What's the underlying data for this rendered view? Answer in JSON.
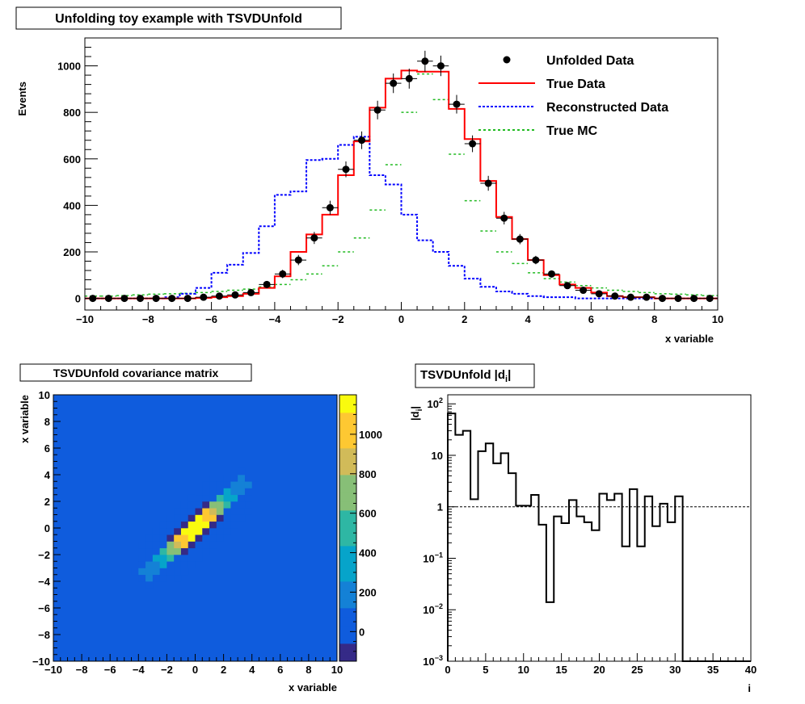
{
  "chart_data": [
    {
      "type": "histogram",
      "title": "Unfolding toy example with TSVDUnfold",
      "xlabel": "x variable",
      "ylabel": "Events",
      "xlim": [
        -10,
        10
      ],
      "ylim": [
        -50,
        1120
      ],
      "x_ticks": [
        -10,
        -8,
        -6,
        -4,
        -2,
        0,
        2,
        4,
        6,
        8,
        10
      ],
      "y_ticks": [
        0,
        200,
        400,
        600,
        800,
        1000
      ],
      "bin_edges_start": -10,
      "bin_width": 0.5,
      "legend_position": "top-right",
      "series": [
        {
          "name": "Unfolded Data",
          "style": "markers",
          "color": "#000000",
          "values": [
            0,
            0,
            0,
            0,
            0,
            0,
            0,
            5,
            10,
            15,
            25,
            60,
            105,
            165,
            260,
            390,
            555,
            680,
            810,
            925,
            945,
            1020,
            1000,
            835,
            665,
            495,
            345,
            255,
            165,
            105,
            55,
            35,
            20,
            10,
            5,
            5,
            0,
            0,
            0,
            0
          ],
          "errors": [
            5,
            5,
            5,
            5,
            5,
            5,
            5,
            6,
            8,
            10,
            12,
            15,
            18,
            22,
            26,
            30,
            34,
            38,
            40,
            42,
            43,
            45,
            44,
            40,
            36,
            32,
            27,
            22,
            18,
            15,
            12,
            10,
            8,
            6,
            5,
            5,
            5,
            5,
            5,
            5
          ]
        },
        {
          "name": "True Data",
          "style": "solid",
          "color": "#ff0000",
          "values": [
            0,
            0,
            0,
            0,
            0,
            0,
            0,
            2,
            5,
            10,
            20,
            45,
            95,
            200,
            275,
            360,
            530,
            675,
            820,
            945,
            980,
            975,
            975,
            815,
            685,
            505,
            350,
            255,
            165,
            100,
            60,
            45,
            25,
            10,
            5,
            5,
            0,
            0,
            0,
            0
          ]
        },
        {
          "name": "Reconstructed Data",
          "style": "dotted",
          "color": "#0000ff",
          "values": [
            0,
            0,
            0,
            0,
            0,
            5,
            20,
            45,
            110,
            145,
            195,
            310,
            445,
            460,
            595,
            600,
            660,
            695,
            530,
            490,
            360,
            250,
            200,
            140,
            85,
            50,
            30,
            20,
            10,
            5,
            5,
            0,
            0,
            0,
            0,
            0,
            0,
            0,
            0,
            0
          ]
        },
        {
          "name": "True MC",
          "style": "dashed",
          "color": "#22bb22",
          "values": [
            10,
            10,
            12,
            15,
            18,
            20,
            22,
            25,
            30,
            35,
            40,
            50,
            60,
            80,
            105,
            140,
            200,
            260,
            380,
            575,
            800,
            965,
            855,
            620,
            420,
            290,
            200,
            150,
            110,
            85,
            70,
            55,
            45,
            35,
            30,
            25,
            20,
            18,
            15,
            12
          ]
        }
      ]
    },
    {
      "type": "heatmap",
      "title": "TSVDUnfold covariance matrix",
      "xlabel": "x variable",
      "ylabel": "x variable",
      "xlim": [
        -10,
        10
      ],
      "ylim": [
        -10,
        10
      ],
      "x_ticks": [
        -10,
        -8,
        -6,
        -4,
        -2,
        0,
        2,
        4,
        6,
        8,
        10
      ],
      "y_ticks": [
        -10,
        -8,
        -6,
        -4,
        -2,
        0,
        2,
        4,
        6,
        8,
        10
      ],
      "zlim": [
        -150,
        1200
      ],
      "z_ticks": [
        0,
        200,
        400,
        600,
        800,
        1000
      ],
      "colormap": [
        "#352a87",
        "#0f5cdd",
        "#1481d6",
        "#06a4ca",
        "#2eb7a4",
        "#87bf77",
        "#d1bb59",
        "#fec832",
        "#f9fb0e"
      ],
      "background_value": 30
    },
    {
      "type": "histogram",
      "title": "TSVDUnfold |d",
      "title_subscript": "i",
      "title_close": "|",
      "xlabel": "i",
      "ylabel": "|d",
      "ylabel_subscript": "i",
      "ylabel_close": "|",
      "xlim": [
        0,
        40
      ],
      "ylim": [
        0.001,
        150
      ],
      "yscale": "log",
      "x_ticks": [
        0,
        5,
        10,
        15,
        20,
        25,
        30,
        35,
        40
      ],
      "y_ticks": [
        {
          "base": "10",
          "exp": "-3",
          "value": 0.001
        },
        {
          "base": "10",
          "exp": "-2",
          "value": 0.01
        },
        {
          "base": "10",
          "exp": "-1",
          "value": 0.1
        },
        {
          "base": "1",
          "exp": "",
          "value": 1
        },
        {
          "base": "10",
          "exp": "",
          "value": 10
        },
        {
          "base": "10",
          "exp": "2",
          "value": 100
        }
      ],
      "reference_line": 1,
      "values": [
        65,
        25,
        30,
        1.4,
        12,
        17,
        7,
        11,
        4.5,
        1.05,
        1.05,
        1.7,
        0.45,
        0.014,
        0.65,
        0.48,
        1.35,
        0.65,
        0.5,
        0.35,
        1.8,
        1.35,
        1.8,
        0.17,
        2.2,
        0.17,
        1.6,
        0.42,
        1.15,
        0.5,
        1.6,
        0.001,
        0.001,
        0.001,
        0.001,
        0.001,
        0.001,
        0.001,
        0.001,
        0.001
      ]
    }
  ]
}
